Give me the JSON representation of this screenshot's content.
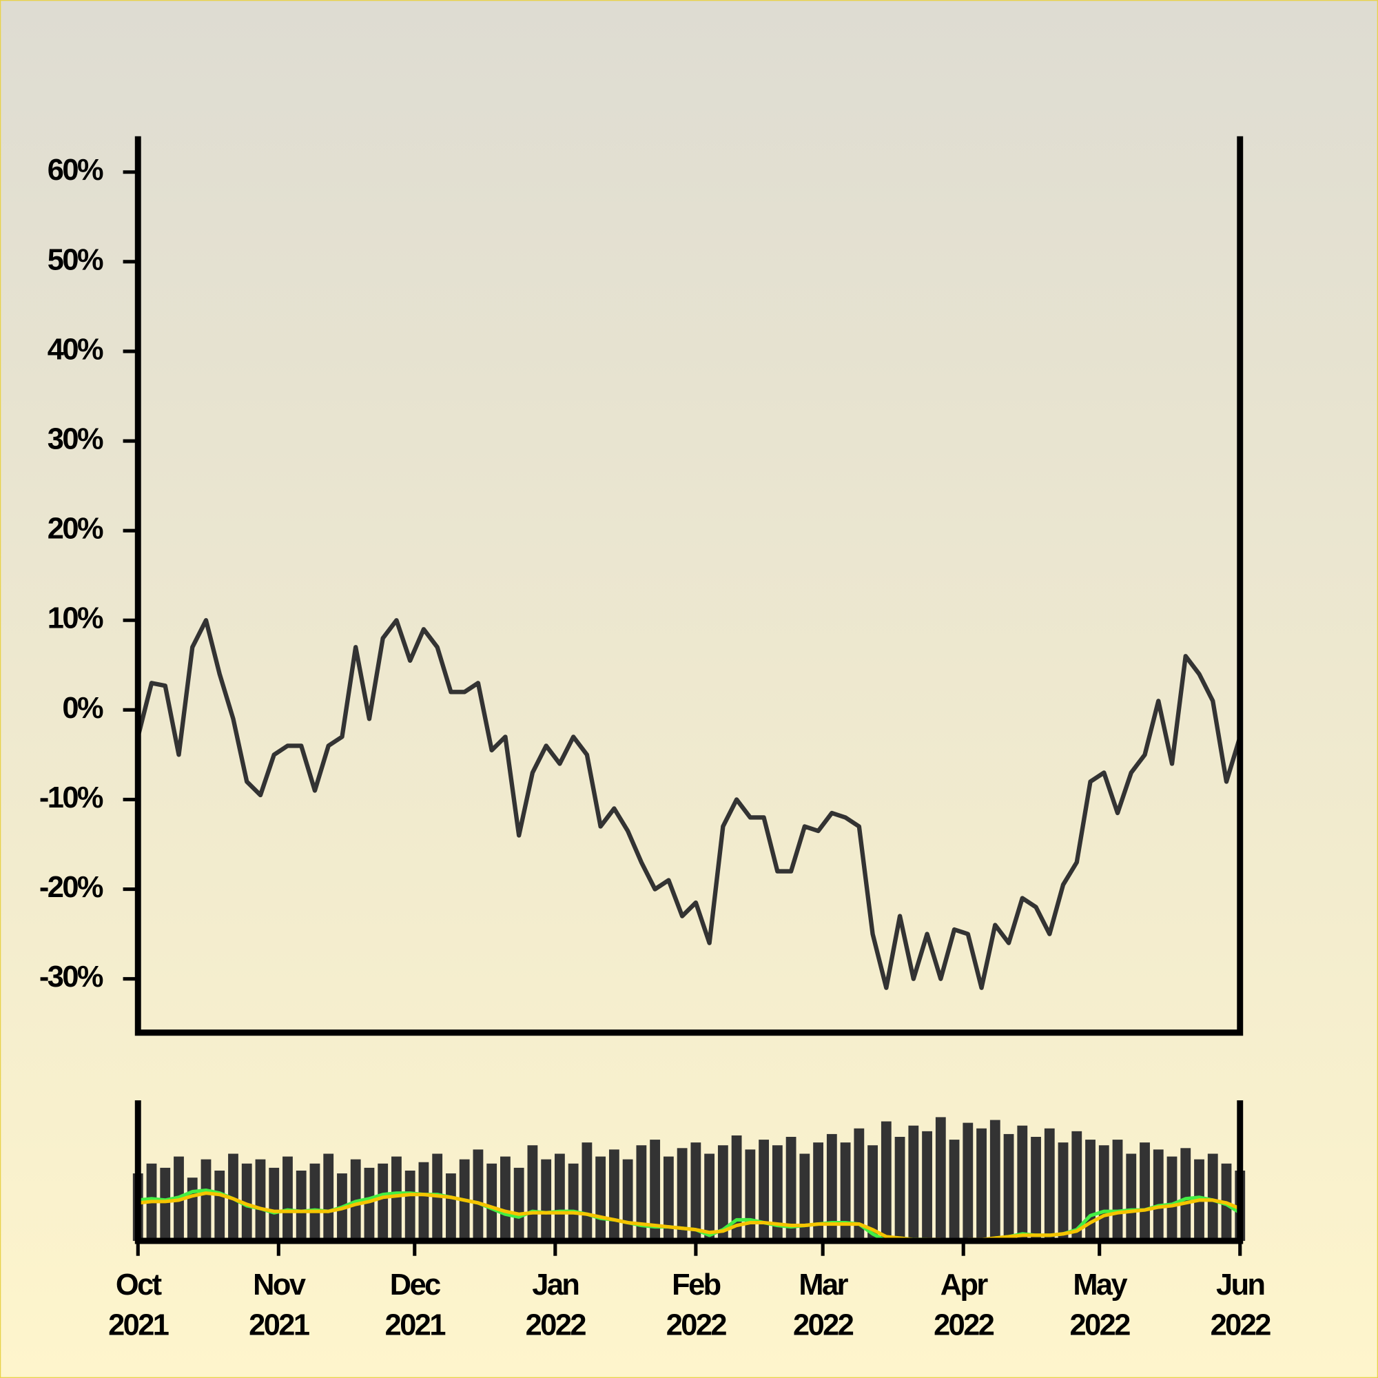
{
  "chart_data": [
    {
      "type": "line",
      "color": "#333333",
      "ylim": [
        -36,
        64
      ],
      "yticks": [
        {
          "value": 60,
          "label": "60%"
        },
        {
          "value": 50,
          "label": "50%"
        },
        {
          "value": 40,
          "label": "40%"
        },
        {
          "value": 30,
          "label": "30%"
        },
        {
          "value": 20,
          "label": "20%"
        },
        {
          "value": 10,
          "label": "10%"
        },
        {
          "value": 0,
          "label": "0%"
        },
        {
          "value": -10,
          "label": "-10%"
        },
        {
          "value": -20,
          "label": "-20%"
        },
        {
          "value": -30,
          "label": "-30%"
        }
      ],
      "values": [
        -3,
        3,
        2.7,
        -5,
        7,
        10,
        4,
        -1,
        -8,
        -9.5,
        -5,
        -4,
        -4,
        -9,
        -4,
        -3,
        7,
        -1,
        8,
        10,
        5.5,
        9,
        7,
        2,
        2,
        3,
        -4.5,
        -3,
        -14,
        -7,
        -4,
        -6,
        -3,
        -5,
        -13,
        -11,
        -13.5,
        -17,
        -20,
        -19,
        -23,
        -21.5,
        -26,
        -13,
        -10,
        -12,
        -12,
        -18,
        -18,
        -13,
        -13.5,
        -11.5,
        -12,
        -13,
        -25,
        -31,
        -23,
        -30,
        -25,
        -30,
        -24.5,
        -25,
        -31,
        -24,
        -26,
        -21,
        -22,
        -25,
        -19.5,
        -17,
        -8,
        -7,
        -11.5,
        -7,
        -5,
        1,
        -6,
        6,
        4,
        1,
        -8,
        -3
      ]
    },
    {
      "type": "bar",
      "color": "#333333",
      "ylim": [
        0,
        100
      ],
      "xticks": [
        {
          "month": "Oct",
          "year": "2021"
        },
        {
          "month": "Nov",
          "year": "2021"
        },
        {
          "month": "Dec",
          "year": "2021"
        },
        {
          "month": "Jan",
          "year": "2022"
        },
        {
          "month": "Feb",
          "year": "2022"
        },
        {
          "month": "Mar",
          "year": "2022"
        },
        {
          "month": "Apr",
          "year": "2022"
        },
        {
          "month": "May",
          "year": "2022"
        },
        {
          "month": "Jun",
          "year": "2022"
        }
      ],
      "values": [
        48,
        55,
        52,
        60,
        45,
        58,
        50,
        62,
        55,
        58,
        52,
        60,
        50,
        55,
        62,
        48,
        58,
        52,
        55,
        60,
        50,
        56,
        62,
        48,
        58,
        65,
        55,
        60,
        52,
        68,
        58,
        62,
        55,
        70,
        60,
        65,
        58,
        68,
        72,
        60,
        66,
        70,
        62,
        68,
        75,
        65,
        72,
        68,
        74,
        62,
        70,
        76,
        70,
        80,
        68,
        85,
        74,
        82,
        78,
        88,
        72,
        84,
        80,
        86,
        76,
        82,
        74,
        80,
        70,
        78,
        72,
        68,
        72,
        62,
        70,
        65,
        60,
        66,
        58,
        62,
        55,
        50
      ],
      "series": [
        {
          "color": "#44ee44",
          "values": [
            29,
            30,
            29,
            31,
            35,
            36,
            34,
            30,
            25,
            23,
            20,
            22,
            21,
            22,
            21,
            24,
            28,
            30,
            33,
            34,
            34,
            33,
            33,
            31,
            29,
            27,
            23,
            19,
            17,
            21,
            20,
            21,
            21,
            19,
            16,
            15,
            13,
            11,
            10,
            10,
            9,
            8,
            4,
            8,
            15,
            15,
            13,
            11,
            10,
            11,
            12,
            13,
            13,
            12,
            5,
            0,
            2,
            1,
            1,
            0,
            0,
            1,
            0,
            2,
            3,
            5,
            4,
            4,
            5,
            8,
            18,
            21,
            21,
            22,
            22,
            25,
            26,
            30,
            31,
            29,
            26,
            20
          ]
        },
        {
          "color": "#f5c400",
          "values": [
            27,
            28,
            28,
            29,
            32,
            34,
            33,
            30,
            26,
            23,
            21,
            21,
            21,
            21,
            21,
            23,
            26,
            28,
            31,
            32,
            33,
            33,
            32,
            31,
            29,
            27,
            24,
            21,
            19,
            20,
            20,
            20,
            20,
            19,
            17,
            15,
            13,
            12,
            11,
            10,
            9,
            8,
            6,
            7,
            11,
            13,
            13,
            12,
            11,
            11,
            12,
            12,
            12,
            12,
            8,
            3,
            2,
            1,
            1,
            1,
            0,
            1,
            1,
            2,
            3,
            4,
            4,
            4,
            5,
            7,
            13,
            18,
            20,
            21,
            22,
            24,
            25,
            27,
            29,
            29,
            27,
            23
          ]
        }
      ]
    }
  ]
}
